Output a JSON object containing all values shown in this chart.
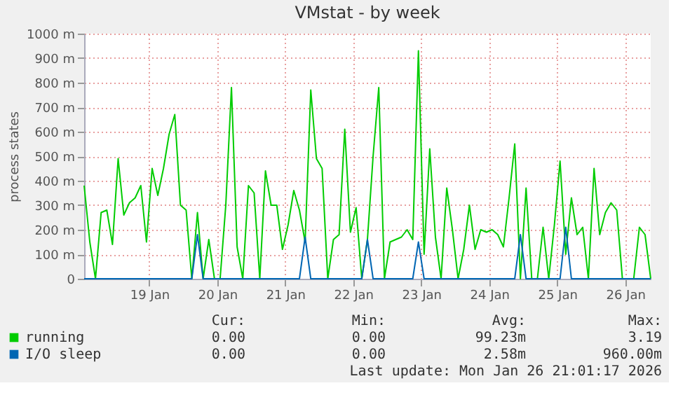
{
  "chart_data": {
    "type": "line",
    "title": "VMstat - by week",
    "ylabel": "process states",
    "x": [
      "2026-01-18T13:00",
      "2026-01-18T15:00",
      "2026-01-18T17:00",
      "2026-01-18T19:00",
      "2026-01-18T21:00",
      "2026-01-18T23:00",
      "2026-01-19T01:00",
      "2026-01-19T03:00",
      "2026-01-19T05:00",
      "2026-01-19T07:00",
      "2026-01-19T09:00",
      "2026-01-19T11:00",
      "2026-01-19T13:00",
      "2026-01-19T15:00",
      "2026-01-19T17:00",
      "2026-01-19T19:00",
      "2026-01-19T21:00",
      "2026-01-19T23:00",
      "2026-01-20T01:00",
      "2026-01-20T03:00",
      "2026-01-20T05:00",
      "2026-01-20T07:00",
      "2026-01-20T09:00",
      "2026-01-20T11:00",
      "2026-01-20T13:00",
      "2026-01-20T15:00",
      "2026-01-20T17:00",
      "2026-01-20T19:00",
      "2026-01-20T21:00",
      "2026-01-20T23:00",
      "2026-01-21T01:00",
      "2026-01-21T03:00",
      "2026-01-21T05:00",
      "2026-01-21T07:00",
      "2026-01-21T09:00",
      "2026-01-21T11:00",
      "2026-01-21T13:00",
      "2026-01-21T15:00",
      "2026-01-21T17:00",
      "2026-01-21T19:00",
      "2026-01-21T21:00",
      "2026-01-21T23:00",
      "2026-01-22T01:00",
      "2026-01-22T03:00",
      "2026-01-22T05:00",
      "2026-01-22T07:00",
      "2026-01-22T09:00",
      "2026-01-22T11:00",
      "2026-01-22T13:00",
      "2026-01-22T15:00",
      "2026-01-22T17:00",
      "2026-01-22T19:00",
      "2026-01-22T21:00",
      "2026-01-22T23:00",
      "2026-01-23T01:00",
      "2026-01-23T03:00",
      "2026-01-23T05:00",
      "2026-01-23T07:00",
      "2026-01-23T09:00",
      "2026-01-23T11:00",
      "2026-01-23T13:00",
      "2026-01-23T15:00",
      "2026-01-23T17:00",
      "2026-01-23T19:00",
      "2026-01-23T21:00",
      "2026-01-23T23:00",
      "2026-01-24T01:00",
      "2026-01-24T03:00",
      "2026-01-24T05:00",
      "2026-01-24T07:00",
      "2026-01-24T09:00",
      "2026-01-24T11:00",
      "2026-01-24T13:00",
      "2026-01-24T15:00",
      "2026-01-24T17:00",
      "2026-01-24T19:00",
      "2026-01-24T21:00",
      "2026-01-24T23:00",
      "2026-01-25T01:00",
      "2026-01-25T03:00",
      "2026-01-25T05:00",
      "2026-01-25T07:00",
      "2026-01-25T09:00",
      "2026-01-25T11:00",
      "2026-01-25T13:00",
      "2026-01-25T15:00",
      "2026-01-25T17:00",
      "2026-01-25T19:00",
      "2026-01-25T21:00",
      "2026-01-25T23:00",
      "2026-01-26T01:00",
      "2026-01-26T03:00",
      "2026-01-26T05:00",
      "2026-01-26T07:00",
      "2026-01-26T09:00",
      "2026-01-26T11:00",
      "2026-01-26T13:00",
      "2026-01-26T15:00",
      "2026-01-26T17:00",
      "2026-01-26T19:00",
      "2026-01-26T21:00"
    ],
    "series": [
      {
        "name": "running",
        "color": "#00cc00",
        "values": [
          380,
          150,
          0,
          270,
          280,
          140,
          490,
          260,
          310,
          330,
          380,
          150,
          450,
          340,
          450,
          590,
          670,
          300,
          280,
          0,
          270,
          0,
          160,
          0,
          0,
          300,
          780,
          130,
          0,
          380,
          350,
          0,
          440,
          300,
          300,
          120,
          220,
          360,
          280,
          150,
          770,
          490,
          450,
          0,
          160,
          180,
          610,
          190,
          290,
          0,
          160,
          500,
          780,
          0,
          150,
          160,
          170,
          200,
          160,
          930,
          100,
          530,
          170,
          0,
          370,
          200,
          0,
          120,
          300,
          120,
          200,
          190,
          200,
          180,
          130,
          330,
          550,
          0,
          370,
          0,
          0,
          210,
          0,
          220,
          480,
          100,
          330,
          180,
          210,
          0,
          450,
          180,
          270,
          310,
          280,
          0,
          0,
          0,
          210,
          180,
          0
        ]
      },
      {
        "name": "I/O sleep",
        "color": "#0066b3",
        "values": [
          0,
          0,
          0,
          0,
          0,
          0,
          0,
          0,
          0,
          0,
          0,
          0,
          0,
          0,
          0,
          0,
          0,
          0,
          0,
          0,
          180,
          0,
          0,
          0,
          0,
          0,
          0,
          0,
          0,
          0,
          0,
          0,
          0,
          0,
          0,
          0,
          0,
          0,
          0,
          170,
          0,
          0,
          0,
          0,
          0,
          0,
          0,
          0,
          0,
          0,
          160,
          0,
          0,
          0,
          0,
          0,
          0,
          0,
          0,
          150,
          0,
          0,
          0,
          0,
          0,
          0,
          0,
          0,
          0,
          0,
          0,
          0,
          0,
          0,
          0,
          0,
          0,
          180,
          0,
          0,
          0,
          0,
          0,
          0,
          0,
          210,
          0,
          0,
          0,
          0,
          0,
          0,
          0,
          0,
          0,
          0,
          0,
          0,
          0,
          0,
          0
        ]
      }
    ],
    "xlim": [
      "2026-01-18T13:00",
      "2026-01-26T21:00"
    ],
    "xticks": [
      {
        "value": "2026-01-19T12:00",
        "label": "19 Jan"
      },
      {
        "value": "2026-01-20T12:00",
        "label": "20 Jan"
      },
      {
        "value": "2026-01-21T12:00",
        "label": "21 Jan"
      },
      {
        "value": "2026-01-22T12:00",
        "label": "22 Jan"
      },
      {
        "value": "2026-01-23T12:00",
        "label": "23 Jan"
      },
      {
        "value": "2026-01-24T12:00",
        "label": "24 Jan"
      },
      {
        "value": "2026-01-25T12:00",
        "label": "25 Jan"
      },
      {
        "value": "2026-01-26T12:00",
        "label": "26 Jan"
      }
    ],
    "ylim": [
      0,
      1000
    ],
    "yticks": [
      0,
      {
        "value": 100,
        "label": "100 m"
      },
      {
        "value": 200,
        "label": "200 m"
      },
      {
        "value": 300,
        "label": "300 m"
      },
      {
        "value": 400,
        "label": "400 m"
      },
      {
        "value": 500,
        "label": "500 m"
      },
      {
        "value": 600,
        "label": "600 m"
      },
      {
        "value": 700,
        "label": "700 m"
      },
      {
        "value": 800,
        "label": "800 m"
      },
      {
        "value": 900,
        "label": "900 m"
      },
      {
        "value": 1000,
        "label": "1000 m"
      }
    ],
    "grid": true,
    "legend": "bottom",
    "marker": "none",
    "line_style": "solid",
    "annotations": [
      "Cur:",
      "Min:",
      "Avg:",
      "Max:",
      "0.00",
      "0.00",
      "99.23m",
      "3.19",
      "0.00",
      "0.00",
      "2.58m",
      "960.00m",
      "Last update: Mon Jan 26 21:01:17 2026"
    ]
  }
}
